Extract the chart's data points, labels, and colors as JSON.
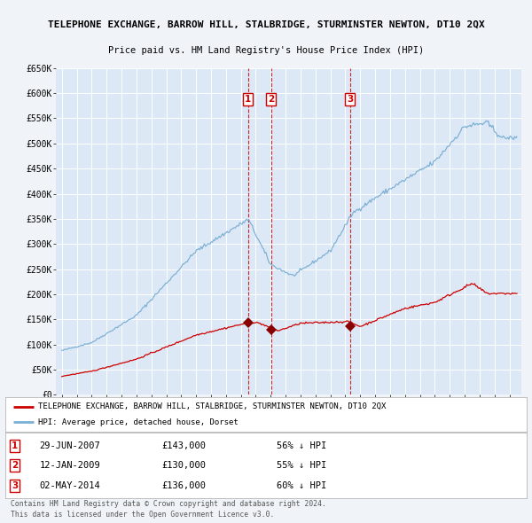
{
  "title": "TELEPHONE EXCHANGE, BARROW HILL, STALBRIDGE, STURMINSTER NEWTON, DT10 2QX",
  "subtitle": "Price paid vs. HM Land Registry's House Price Index (HPI)",
  "hpi_label": "HPI: Average price, detached house, Dorset",
  "property_label": "TELEPHONE EXCHANGE, BARROW HILL, STALBRIDGE, STURMINSTER NEWTON, DT10 2QX",
  "hpi_color": "#7bafd4",
  "property_color": "#cc0000",
  "background_color": "#f0f4f8",
  "plot_bg_color": "#dce8f5",
  "grid_color": "#ffffff",
  "ylim": [
    0,
    650000
  ],
  "yticks": [
    0,
    50000,
    100000,
    150000,
    200000,
    250000,
    300000,
    350000,
    400000,
    450000,
    500000,
    550000,
    600000,
    650000
  ],
  "ytick_labels": [
    "£0",
    "£50K",
    "£100K",
    "£150K",
    "£200K",
    "£250K",
    "£300K",
    "£350K",
    "£400K",
    "£450K",
    "£500K",
    "£550K",
    "£600K",
    "£650K"
  ],
  "sales": [
    {
      "num": 1,
      "date": "29-JUN-2007",
      "date_val": 2007.49,
      "price": 143000,
      "pct": "56%",
      "dir": "↓"
    },
    {
      "num": 2,
      "date": "12-JAN-2009",
      "date_val": 2009.03,
      "price": 130000,
      "pct": "55%",
      "dir": "↓"
    },
    {
      "num": 3,
      "date": "02-MAY-2014",
      "date_val": 2014.33,
      "price": 136000,
      "pct": "60%",
      "dir": "↓"
    }
  ],
  "footer1": "Contains HM Land Registry data © Crown copyright and database right 2024.",
  "footer2": "This data is licensed under the Open Government Licence v3.0."
}
